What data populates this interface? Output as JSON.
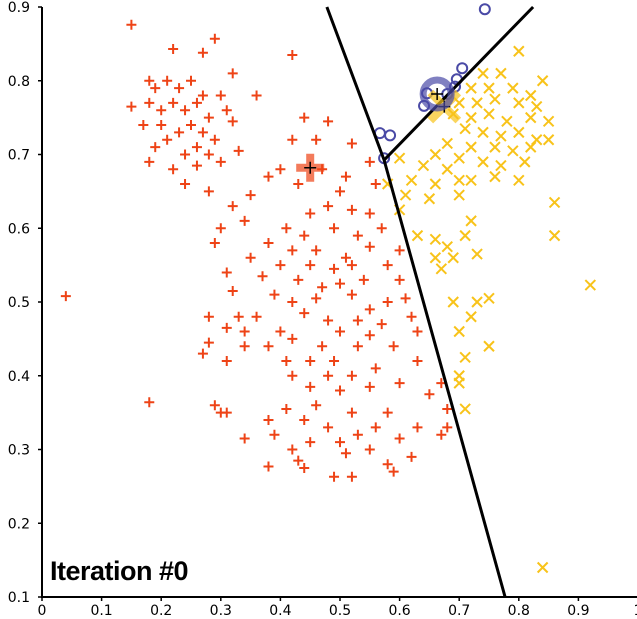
{
  "chart_data": {
    "type": "scatter",
    "title": "",
    "annotation": "Iteration #0",
    "xlabel": "",
    "ylabel": "",
    "xlim": [
      0,
      1
    ],
    "ylim": [
      0.1,
      0.9
    ],
    "x_ticks": [
      "0",
      "0.1",
      "0.2",
      "0.3",
      "0.4",
      "0.5",
      "0.6",
      "0.7",
      "0.8",
      "0.9",
      "1"
    ],
    "y_ticks": [
      "0.1",
      "0.2",
      "0.3",
      "0.4",
      "0.5",
      "0.6",
      "0.7",
      "0.8",
      "0.9"
    ],
    "grid": false,
    "colors": {
      "red": "#ee4316",
      "yellow": "#f8c31a",
      "blue": "#4a4aa6"
    },
    "clusters": [
      {
        "marker": "plus",
        "color": "#ee4316",
        "centroid": [
          0.45,
          0.682
        ],
        "points": [
          [
            0.15,
            0.876
          ],
          [
            0.22,
            0.843
          ],
          [
            0.27,
            0.838
          ],
          [
            0.29,
            0.857
          ],
          [
            0.32,
            0.81
          ],
          [
            0.18,
            0.8
          ],
          [
            0.19,
            0.79
          ],
          [
            0.21,
            0.8
          ],
          [
            0.23,
            0.79
          ],
          [
            0.25,
            0.8
          ],
          [
            0.27,
            0.78
          ],
          [
            0.3,
            0.78
          ],
          [
            0.18,
            0.77
          ],
          [
            0.2,
            0.76
          ],
          [
            0.22,
            0.77
          ],
          [
            0.24,
            0.76
          ],
          [
            0.26,
            0.77
          ],
          [
            0.28,
            0.75
          ],
          [
            0.31,
            0.76
          ],
          [
            0.15,
            0.765
          ],
          [
            0.17,
            0.74
          ],
          [
            0.2,
            0.74
          ],
          [
            0.23,
            0.73
          ],
          [
            0.25,
            0.74
          ],
          [
            0.27,
            0.73
          ],
          [
            0.29,
            0.72
          ],
          [
            0.32,
            0.745
          ],
          [
            0.19,
            0.71
          ],
          [
            0.21,
            0.72
          ],
          [
            0.24,
            0.7
          ],
          [
            0.26,
            0.71
          ],
          [
            0.28,
            0.7
          ],
          [
            0.18,
            0.69
          ],
          [
            0.22,
            0.68
          ],
          [
            0.26,
            0.685
          ],
          [
            0.3,
            0.69
          ],
          [
            0.33,
            0.705
          ],
          [
            0.36,
            0.78
          ],
          [
            0.42,
            0.835
          ],
          [
            0.24,
            0.66
          ],
          [
            0.28,
            0.65
          ],
          [
            0.44,
            0.75
          ],
          [
            0.48,
            0.745
          ],
          [
            0.42,
            0.72
          ],
          [
            0.46,
            0.72
          ],
          [
            0.52,
            0.715
          ],
          [
            0.55,
            0.69
          ],
          [
            0.4,
            0.68
          ],
          [
            0.47,
            0.68
          ],
          [
            0.51,
            0.67
          ],
          [
            0.38,
            0.67
          ],
          [
            0.43,
            0.66
          ],
          [
            0.35,
            0.645
          ],
          [
            0.5,
            0.65
          ],
          [
            0.56,
            0.66
          ],
          [
            0.32,
            0.63
          ],
          [
            0.45,
            0.62
          ],
          [
            0.48,
            0.63
          ],
          [
            0.52,
            0.625
          ],
          [
            0.55,
            0.62
          ],
          [
            0.3,
            0.6
          ],
          [
            0.34,
            0.61
          ],
          [
            0.41,
            0.6
          ],
          [
            0.44,
            0.59
          ],
          [
            0.49,
            0.6
          ],
          [
            0.53,
            0.59
          ],
          [
            0.57,
            0.6
          ],
          [
            0.29,
            0.58
          ],
          [
            0.38,
            0.58
          ],
          [
            0.42,
            0.57
          ],
          [
            0.46,
            0.57
          ],
          [
            0.51,
            0.56
          ],
          [
            0.55,
            0.575
          ],
          [
            0.6,
            0.57
          ],
          [
            0.35,
            0.56
          ],
          [
            0.4,
            0.55
          ],
          [
            0.45,
            0.55
          ],
          [
            0.49,
            0.545
          ],
          [
            0.52,
            0.55
          ],
          [
            0.58,
            0.55
          ],
          [
            0.31,
            0.54
          ],
          [
            0.37,
            0.535
          ],
          [
            0.43,
            0.53
          ],
          [
            0.47,
            0.52
          ],
          [
            0.5,
            0.525
          ],
          [
            0.54,
            0.53
          ],
          [
            0.6,
            0.53
          ],
          [
            0.04,
            0.508
          ],
          [
            0.32,
            0.515
          ],
          [
            0.39,
            0.51
          ],
          [
            0.42,
            0.5
          ],
          [
            0.46,
            0.505
          ],
          [
            0.52,
            0.51
          ],
          [
            0.55,
            0.49
          ],
          [
            0.58,
            0.5
          ],
          [
            0.61,
            0.505
          ],
          [
            0.28,
            0.48
          ],
          [
            0.33,
            0.48
          ],
          [
            0.36,
            0.48
          ],
          [
            0.44,
            0.485
          ],
          [
            0.48,
            0.475
          ],
          [
            0.53,
            0.475
          ],
          [
            0.57,
            0.47
          ],
          [
            0.62,
            0.48
          ],
          [
            0.31,
            0.465
          ],
          [
            0.34,
            0.46
          ],
          [
            0.4,
            0.46
          ],
          [
            0.5,
            0.46
          ],
          [
            0.55,
            0.455
          ],
          [
            0.59,
            0.44
          ],
          [
            0.63,
            0.46
          ],
          [
            0.28,
            0.445
          ],
          [
            0.34,
            0.44
          ],
          [
            0.38,
            0.44
          ],
          [
            0.42,
            0.45
          ],
          [
            0.47,
            0.44
          ],
          [
            0.53,
            0.44
          ],
          [
            0.27,
            0.43
          ],
          [
            0.31,
            0.42
          ],
          [
            0.41,
            0.42
          ],
          [
            0.45,
            0.42
          ],
          [
            0.49,
            0.42
          ],
          [
            0.56,
            0.41
          ],
          [
            0.63,
            0.42
          ],
          [
            0.42,
            0.4
          ],
          [
            0.48,
            0.4
          ],
          [
            0.52,
            0.4
          ],
          [
            0.6,
            0.39
          ],
          [
            0.67,
            0.39
          ],
          [
            0.45,
            0.385
          ],
          [
            0.5,
            0.38
          ],
          [
            0.55,
            0.385
          ],
          [
            0.65,
            0.375
          ],
          [
            0.18,
            0.364
          ],
          [
            0.29,
            0.36
          ],
          [
            0.31,
            0.35
          ],
          [
            0.41,
            0.355
          ],
          [
            0.46,
            0.36
          ],
          [
            0.52,
            0.35
          ],
          [
            0.58,
            0.35
          ],
          [
            0.68,
            0.355
          ],
          [
            0.3,
            0.35
          ],
          [
            0.38,
            0.34
          ],
          [
            0.44,
            0.34
          ],
          [
            0.48,
            0.33
          ],
          [
            0.56,
            0.33
          ],
          [
            0.63,
            0.33
          ],
          [
            0.68,
            0.33
          ],
          [
            0.34,
            0.315
          ],
          [
            0.39,
            0.32
          ],
          [
            0.45,
            0.31
          ],
          [
            0.5,
            0.31
          ],
          [
            0.53,
            0.32
          ],
          [
            0.6,
            0.315
          ],
          [
            0.67,
            0.32
          ],
          [
            0.42,
            0.3
          ],
          [
            0.51,
            0.295
          ],
          [
            0.55,
            0.3
          ],
          [
            0.58,
            0.28
          ],
          [
            0.62,
            0.29
          ],
          [
            0.38,
            0.277
          ],
          [
            0.43,
            0.285
          ],
          [
            0.44,
            0.275
          ],
          [
            0.49,
            0.263
          ],
          [
            0.52,
            0.263
          ],
          [
            0.59,
            0.27
          ]
        ]
      },
      {
        "marker": "x",
        "color": "#f8c31a",
        "centroid": [
          0.675,
          0.765
        ],
        "points": [
          [
            0.74,
            0.81
          ],
          [
            0.77,
            0.81
          ],
          [
            0.8,
            0.84
          ],
          [
            0.84,
            0.8
          ],
          [
            0.72,
            0.79
          ],
          [
            0.75,
            0.79
          ],
          [
            0.79,
            0.79
          ],
          [
            0.82,
            0.78
          ],
          [
            0.7,
            0.77
          ],
          [
            0.73,
            0.77
          ],
          [
            0.76,
            0.775
          ],
          [
            0.8,
            0.77
          ],
          [
            0.83,
            0.765
          ],
          [
            0.69,
            0.755
          ],
          [
            0.72,
            0.75
          ],
          [
            0.75,
            0.755
          ],
          [
            0.78,
            0.745
          ],
          [
            0.82,
            0.75
          ],
          [
            0.85,
            0.745
          ],
          [
            0.71,
            0.735
          ],
          [
            0.74,
            0.73
          ],
          [
            0.77,
            0.725
          ],
          [
            0.8,
            0.73
          ],
          [
            0.83,
            0.72
          ],
          [
            0.68,
            0.715
          ],
          [
            0.72,
            0.71
          ],
          [
            0.76,
            0.71
          ],
          [
            0.79,
            0.705
          ],
          [
            0.82,
            0.71
          ],
          [
            0.66,
            0.7
          ],
          [
            0.7,
            0.695
          ],
          [
            0.74,
            0.69
          ],
          [
            0.77,
            0.685
          ],
          [
            0.81,
            0.69
          ],
          [
            0.85,
            0.72
          ],
          [
            0.6,
            0.695
          ],
          [
            0.64,
            0.685
          ],
          [
            0.68,
            0.68
          ],
          [
            0.72,
            0.665
          ],
          [
            0.76,
            0.67
          ],
          [
            0.8,
            0.665
          ],
          [
            0.62,
            0.665
          ],
          [
            0.66,
            0.66
          ],
          [
            0.7,
            0.665
          ],
          [
            0.58,
            0.66
          ],
          [
            0.61,
            0.645
          ],
          [
            0.65,
            0.64
          ],
          [
            0.7,
            0.645
          ],
          [
            0.6,
            0.625
          ],
          [
            0.86,
            0.635
          ],
          [
            0.72,
            0.61
          ],
          [
            0.63,
            0.59
          ],
          [
            0.66,
            0.585
          ],
          [
            0.68,
            0.575
          ],
          [
            0.71,
            0.59
          ],
          [
            0.86,
            0.59
          ],
          [
            0.66,
            0.56
          ],
          [
            0.69,
            0.56
          ],
          [
            0.73,
            0.565
          ],
          [
            0.67,
            0.545
          ],
          [
            0.92,
            0.523
          ],
          [
            0.69,
            0.5
          ],
          [
            0.73,
            0.5
          ],
          [
            0.75,
            0.505
          ],
          [
            0.72,
            0.48
          ],
          [
            0.7,
            0.46
          ],
          [
            0.75,
            0.44
          ],
          [
            0.71,
            0.425
          ],
          [
            0.7,
            0.4
          ],
          [
            0.7,
            0.39
          ],
          [
            0.71,
            0.355
          ],
          [
            0.84,
            0.14
          ]
        ]
      },
      {
        "marker": "circle",
        "color": "#4a4aa6",
        "centroid": [
          0.663,
          0.782
        ],
        "points": [
          [
            0.743,
            0.897
          ],
          [
            0.705,
            0.817
          ],
          [
            0.696,
            0.802
          ],
          [
            0.693,
            0.792
          ],
          [
            0.646,
            0.783
          ],
          [
            0.641,
            0.766
          ],
          [
            0.68,
            0.782
          ],
          [
            0.567,
            0.729
          ],
          [
            0.584,
            0.726
          ],
          [
            0.574,
            0.695
          ]
        ]
      }
    ],
    "boundaries": [
      [
        [
          0.478,
          0.9
        ],
        [
          0.574,
          0.6925
        ],
        [
          0.777,
          0.1
        ]
      ],
      [
        [
          0.574,
          0.6925
        ],
        [
          0.824,
          0.9
        ]
      ]
    ]
  }
}
